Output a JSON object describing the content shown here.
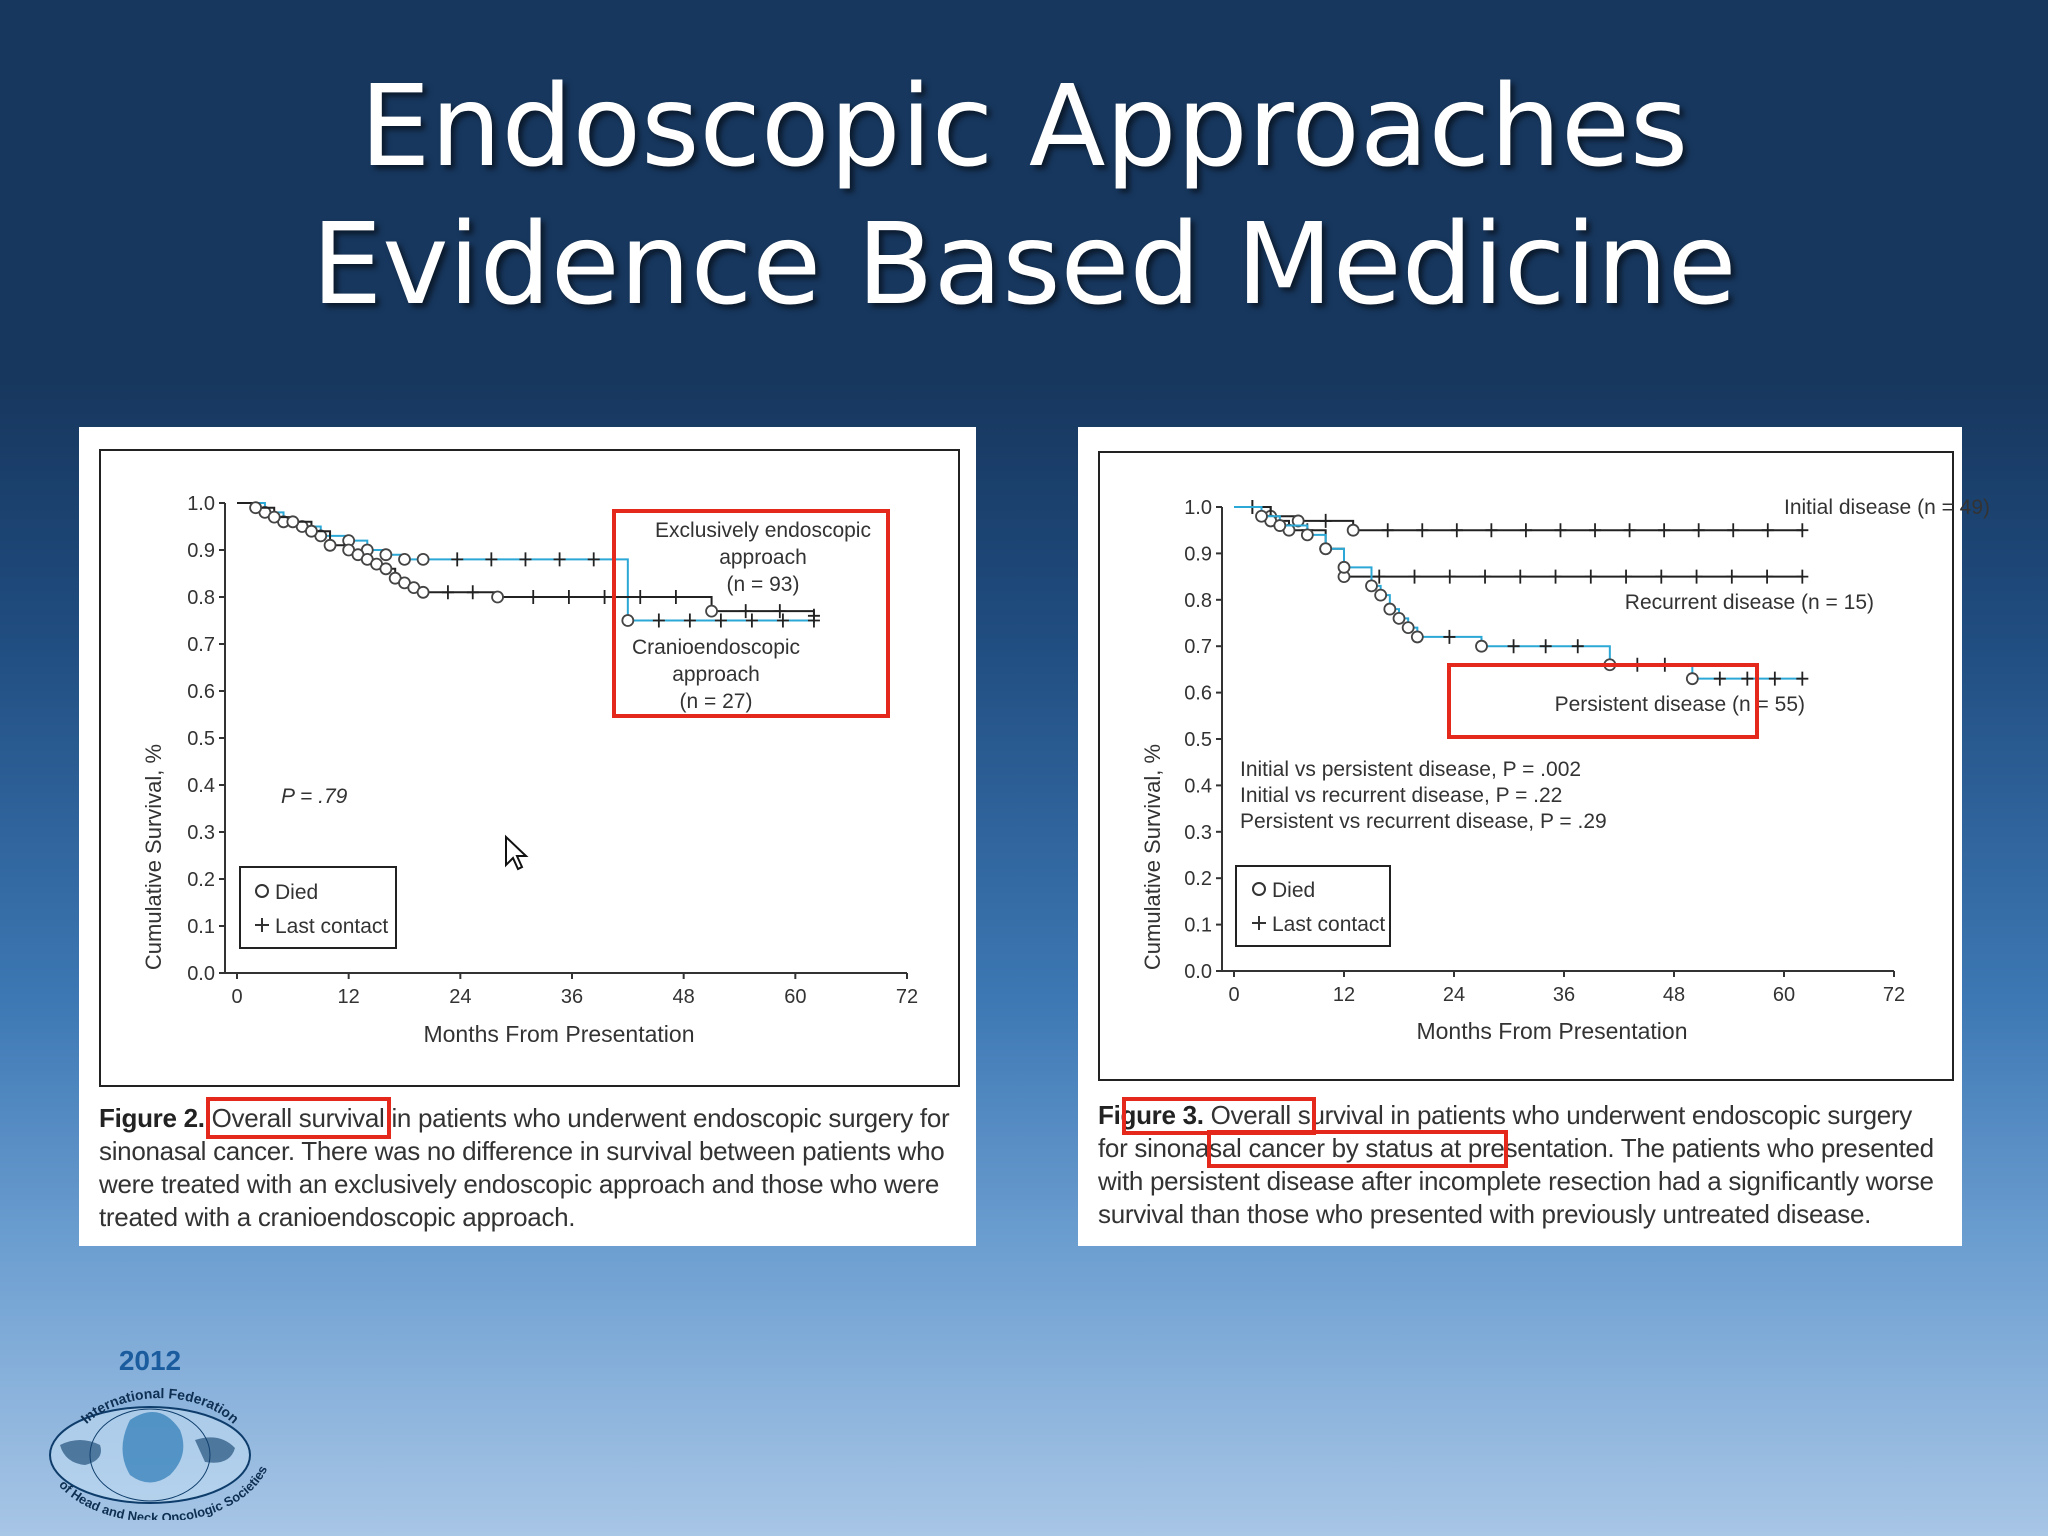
{
  "slide": {
    "title_line1": "Endoscopic Approaches",
    "title_line2": "Evidence Based Medicine"
  },
  "figure2": {
    "y_axis_label": "Cumulative Survival, %",
    "x_axis_label": "Months From Presentation",
    "y_ticks": [
      "0.0",
      "0.1",
      "0.2",
      "0.3",
      "0.4",
      "0.5",
      "0.6",
      "0.7",
      "0.8",
      "0.9",
      "1.0"
    ],
    "x_ticks": [
      "0",
      "12",
      "24",
      "36",
      "48",
      "60",
      "72"
    ],
    "annotation_endo_l1": "Exclusively endoscopic",
    "annotation_endo_l2": "approach",
    "annotation_endo_l3": "(n = 93)",
    "annotation_cranio_l1": "Cranioendoscopic",
    "annotation_cranio_l2": "approach",
    "annotation_cranio_l3": "(n = 27)",
    "p_value": "P = .79",
    "legend_died": "Died",
    "legend_last_contact": "Last contact",
    "caption_label": "Figure 2.",
    "caption_highlight": "Overall survival",
    "caption_rest": " in patients who underwent endoscopic surgery for sinonasal cancer. There was no difference in survival between patients who were treated with an exclusively endoscopic approach and those who were treated with a cranioendoscopic approach."
  },
  "figure3": {
    "y_axis_label": "Cumulative Survival, %",
    "x_axis_label": "Months From Presentation",
    "y_ticks": [
      "0.0",
      "0.1",
      "0.2",
      "0.3",
      "0.4",
      "0.5",
      "0.6",
      "0.7",
      "0.8",
      "0.9",
      "1.0"
    ],
    "x_ticks": [
      "0",
      "12",
      "24",
      "36",
      "48",
      "60",
      "72"
    ],
    "label_initial": "Initial disease (n = 49)",
    "label_recurrent": "Recurrent disease (n = 15)",
    "label_persistent": "Persistent disease (n = 55)",
    "stat_line1": "Initial vs persistent disease, P = .002",
    "stat_line2": "Initial vs recurrent disease, P = .22",
    "stat_line3": "Persistent vs recurrent disease, P = .29",
    "legend_died": "Died",
    "legend_last_contact": "Last contact",
    "caption_label": "Figure 3.",
    "caption_text": " Overall survival in patients who underwent endoscopic surgery for sinonasal cancer by status at presentation. The patients who presented with persistent disease after incomplete resection had a significantly worse survival than those who presented with previously untreated disease."
  },
  "logo": {
    "year": "2012",
    "arc_top": "International Federation",
    "arc_bottom": "of Head and Neck Oncologic Societies"
  },
  "chart_data": [
    {
      "type": "line",
      "xlabel": "Months From Presentation",
      "ylabel": "Cumulative Survival, %",
      "xlim": [
        0,
        72
      ],
      "ylim": [
        0,
        1.0
      ],
      "series": [
        {
          "name": "Exclusively endoscopic approach (n = 93)",
          "color": "#2ba8d6",
          "x": [
            0,
            3,
            5,
            7,
            9,
            12,
            14,
            16,
            18,
            20,
            42,
            62
          ],
          "y": [
            1.0,
            0.98,
            0.96,
            0.95,
            0.93,
            0.92,
            0.9,
            0.89,
            0.88,
            0.88,
            0.75,
            0.75
          ]
        },
        {
          "name": "Cranioendoscopic approach (n = 27)",
          "color": "#222222",
          "x": [
            0,
            2,
            4,
            6,
            8,
            10,
            12,
            13,
            14,
            15,
            16,
            17,
            18,
            19,
            20,
            28,
            51,
            62
          ],
          "y": [
            1.0,
            0.99,
            0.97,
            0.96,
            0.94,
            0.91,
            0.9,
            0.89,
            0.88,
            0.87,
            0.86,
            0.84,
            0.83,
            0.82,
            0.81,
            0.8,
            0.77,
            0.76
          ]
        }
      ]
    },
    {
      "type": "line",
      "xlabel": "Months From Presentation",
      "ylabel": "Cumulative Survival, %",
      "xlim": [
        0,
        72
      ],
      "ylim": [
        0,
        1.0
      ],
      "series": [
        {
          "name": "Initial disease (n = 49)",
          "color": "#222222",
          "x": [
            0,
            4,
            7,
            13,
            62
          ],
          "y": [
            1.0,
            0.98,
            0.97,
            0.95,
            0.95
          ]
        },
        {
          "name": "Recurrent disease (n = 15)",
          "color": "#222222",
          "x": [
            0,
            4,
            6,
            10,
            12,
            62
          ],
          "y": [
            1.0,
            0.97,
            0.95,
            0.91,
            0.85,
            0.85
          ]
        },
        {
          "name": "Persistent disease (n = 55)",
          "color": "#2ba8d6",
          "x": [
            0,
            3,
            5,
            8,
            10,
            12,
            15,
            16,
            17,
            18,
            19,
            20,
            27,
            41,
            50,
            62
          ],
          "y": [
            1.0,
            0.98,
            0.96,
            0.94,
            0.91,
            0.87,
            0.83,
            0.81,
            0.78,
            0.76,
            0.74,
            0.72,
            0.7,
            0.66,
            0.63,
            0.63
          ]
        }
      ]
    }
  ]
}
